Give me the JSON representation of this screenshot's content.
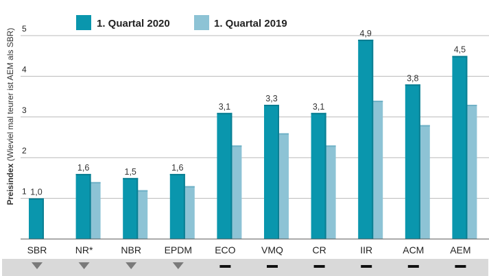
{
  "chart_data": {
    "type": "bar",
    "ylabel_bold": "Preisindex",
    "ylabel_rest": " (Wieviel  mal teurer ist AEM als SBR)",
    "ylim": [
      0,
      5
    ],
    "yticks": [
      "1",
      "2",
      "3",
      "4",
      "5"
    ],
    "categories": [
      "SBR",
      "NR*",
      "NBR",
      "EPDM",
      "ECO",
      "VMQ",
      "CR",
      "IIR",
      "ACM",
      "AEM"
    ],
    "series": [
      {
        "name": "1. Quartal 2020",
        "color": "#0a96ad",
        "values": [
          1.0,
          1.6,
          1.5,
          1.6,
          3.1,
          3.3,
          3.1,
          4.9,
          3.8,
          4.5
        ],
        "labels": [
          "1,0",
          "1,6",
          "1,5",
          "1,6",
          "3,1",
          "3,3",
          "3,1",
          "4,9",
          "3,8",
          "4,5"
        ]
      },
      {
        "name": "1. Quartal 2019",
        "color": "#8dc3d5",
        "values": [
          null,
          1.4,
          1.2,
          1.3,
          2.3,
          2.6,
          2.3,
          3.4,
          2.8,
          3.3
        ]
      }
    ],
    "trend_indicators": [
      "down",
      "down",
      "down",
      "down",
      "flat",
      "flat",
      "flat",
      "flat",
      "flat",
      "flat"
    ],
    "grid": true,
    "legend_position": "top"
  }
}
